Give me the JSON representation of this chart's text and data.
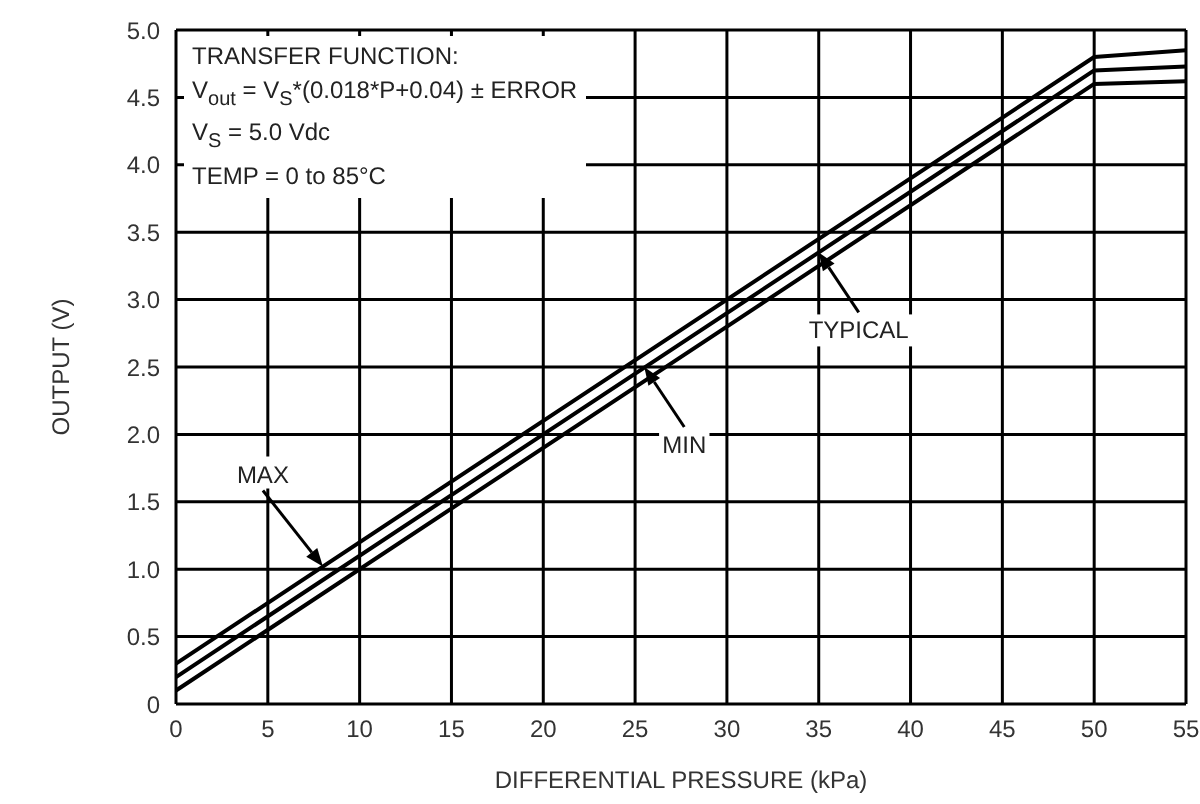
{
  "chart_data": {
    "type": "line",
    "xlabel": "DIFFERENTIAL PRESSURE (kPa)",
    "ylabel": "OUTPUT (V)",
    "x": [
      0,
      50,
      55
    ],
    "series": [
      {
        "color": "#000000",
        "values": [
          0.3,
          4.8,
          4.85
        ]
      },
      {
        "color": "#000000",
        "values": [
          0.2,
          4.7,
          4.73
        ]
      },
      {
        "color": "#000000",
        "values": [
          0.1,
          4.6,
          4.62
        ]
      }
    ],
    "xlim": [
      0,
      55
    ],
    "xticks": [
      0,
      5,
      10,
      15,
      20,
      25,
      30,
      35,
      40,
      45,
      50,
      55
    ],
    "ylim": [
      0,
      5
    ],
    "yticks": [
      0,
      0.5,
      {
        "value": 1,
        "label": "1.0"
      },
      1.5,
      {
        "value": 2,
        "label": "2.0"
      },
      2.5,
      {
        "value": 3,
        "label": "3.0"
      },
      3.5,
      {
        "value": 4,
        "label": "4.0"
      },
      4.5,
      {
        "value": 5,
        "label": "5.0"
      }
    ],
    "grid": true,
    "marker": "none",
    "line_style": "solid",
    "annotations": [
      "TRANSFER FUNCTION:",
      "V$_{out}$ = V$_{S}$*(0.018*P+0.04) ± ERROR",
      "V$_{S}$ = 5.0 Vdc",
      "TEMP = 0 to 85°C",
      {
        "text": "MAX",
        "x": 8,
        "y": 1.02
      },
      {
        "text": "MIN",
        "x": 25.5,
        "y": 2.5
      },
      {
        "text": "TYPICAL",
        "x": 35,
        "y": 3.35
      }
    ]
  }
}
